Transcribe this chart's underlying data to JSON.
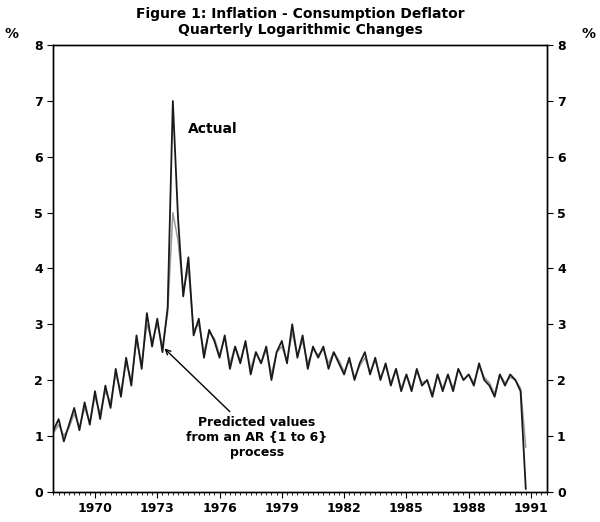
{
  "title_line1": "Figure 1: Inflation - Consumption Deflator",
  "title_line2": "Quarterly Logarithmic Changes",
  "ylabel_left": "%",
  "ylabel_right": "%",
  "ylim": [
    0,
    8
  ],
  "yticks": [
    0,
    1,
    2,
    3,
    4,
    5,
    6,
    7,
    8
  ],
  "xlim_start": 1968.0,
  "xlim_end": 1991.75,
  "xtick_years": [
    1970,
    1973,
    1976,
    1979,
    1982,
    1985,
    1988,
    1991
  ],
  "actual_color": "#1a1a1a",
  "predicted_color": "#999999",
  "actual_linewidth": 1.3,
  "predicted_linewidth": 1.1,
  "annotation_actual": "Actual",
  "annotation_predicted": "Predicted values\nfrom an AR {1 to 6}\nprocess",
  "background_color": "#ffffff",
  "actual_data": [
    1.1,
    1.3,
    0.9,
    1.2,
    1.5,
    1.1,
    1.6,
    1.2,
    1.8,
    1.3,
    1.9,
    1.5,
    2.2,
    1.7,
    2.4,
    1.9,
    2.8,
    2.2,
    3.2,
    2.6,
    3.1,
    2.5,
    3.3,
    7.0,
    4.9,
    3.5,
    4.2,
    2.8,
    3.1,
    2.4,
    2.9,
    2.7,
    2.4,
    2.8,
    2.2,
    2.6,
    2.3,
    2.7,
    2.1,
    2.5,
    2.3,
    2.6,
    2.0,
    2.5,
    2.7,
    2.3,
    3.0,
    2.4,
    2.8,
    2.2,
    2.6,
    2.4,
    2.6,
    2.2,
    2.5,
    2.3,
    2.1,
    2.4,
    2.0,
    2.3,
    2.5,
    2.1,
    2.4,
    2.0,
    2.3,
    1.9,
    2.2,
    1.8,
    2.1,
    1.8,
    2.2,
    1.9,
    2.0,
    1.7,
    2.1,
    1.8,
    2.1,
    1.8,
    2.2,
    2.0,
    2.1,
    1.9,
    2.3,
    2.0,
    1.9,
    1.7,
    2.1,
    1.9,
    2.1,
    2.0,
    1.8,
    0.05
  ],
  "predicted_data": [
    1.05,
    1.2,
    1.0,
    1.15,
    1.4,
    1.15,
    1.5,
    1.25,
    1.7,
    1.4,
    1.8,
    1.6,
    2.1,
    1.8,
    2.3,
    2.0,
    2.7,
    2.3,
    3.0,
    2.7,
    3.0,
    2.6,
    3.2,
    5.0,
    4.5,
    3.6,
    4.0,
    2.9,
    3.0,
    2.5,
    2.85,
    2.75,
    2.45,
    2.75,
    2.3,
    2.6,
    2.35,
    2.65,
    2.2,
    2.5,
    2.3,
    2.55,
    2.1,
    2.5,
    2.6,
    2.35,
    2.85,
    2.45,
    2.7,
    2.3,
    2.55,
    2.45,
    2.55,
    2.3,
    2.5,
    2.35,
    2.15,
    2.35,
    2.05,
    2.25,
    2.4,
    2.15,
    2.35,
    2.05,
    2.25,
    1.95,
    2.2,
    1.85,
    2.1,
    1.85,
    2.15,
    1.95,
    2.0,
    1.75,
    2.1,
    1.85,
    2.1,
    1.85,
    2.2,
    2.0,
    2.1,
    1.95,
    2.25,
    2.05,
    1.95,
    1.75,
    2.1,
    1.95,
    2.05,
    2.0,
    1.85,
    0.8
  ]
}
